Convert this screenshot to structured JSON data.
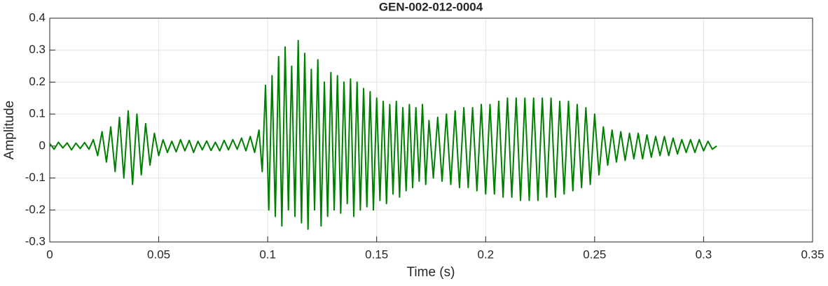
{
  "chart_data": {
    "type": "line",
    "title": "GEN-002-012-0004",
    "x_label": "Time (s)",
    "y_label": "Amplitude",
    "xlim": [
      0,
      0.35
    ],
    "xticks": [
      0,
      0.05,
      0.1,
      0.15,
      0.2,
      0.25,
      0.3,
      0.35
    ],
    "ylim": [
      -0.3,
      0.4
    ],
    "yticks": [
      -0.3,
      -0.2,
      -0.1,
      0,
      0.1,
      0.2,
      0.3,
      0.4
    ],
    "grid": true,
    "series": [
      {
        "color": "#008000",
        "x": [
          0,
          0.002,
          0.004,
          0.006,
          0.008,
          0.01,
          0.012,
          0.014,
          0.016,
          0.018,
          0.02,
          0.022,
          0.024,
          0.026,
          0.028,
          0.03,
          0.032,
          0.034,
          0.036,
          0.038,
          0.04,
          0.042,
          0.044,
          0.046,
          0.048,
          0.05,
          0.052,
          0.054,
          0.056,
          0.058,
          0.06,
          0.062,
          0.064,
          0.066,
          0.068,
          0.07,
          0.072,
          0.074,
          0.076,
          0.078,
          0.08,
          0.082,
          0.084,
          0.086,
          0.088,
          0.09,
          0.092,
          0.094,
          0.096,
          0.0975,
          0.099,
          0.1005,
          0.102,
          0.1035,
          0.105,
          0.1065,
          0.108,
          0.1095,
          0.111,
          0.1125,
          0.114,
          0.1155,
          0.117,
          0.1185,
          0.12,
          0.1215,
          0.123,
          0.1245,
          0.126,
          0.1275,
          0.129,
          0.1305,
          0.132,
          0.1335,
          0.135,
          0.1365,
          0.138,
          0.1395,
          0.141,
          0.1425,
          0.144,
          0.1455,
          0.147,
          0.1485,
          0.15,
          0.1515,
          0.153,
          0.1545,
          0.156,
          0.1575,
          0.159,
          0.1605,
          0.162,
          0.1635,
          0.165,
          0.1665,
          0.168,
          0.1695,
          0.171,
          0.1725,
          0.174,
          0.176,
          0.178,
          0.18,
          0.182,
          0.184,
          0.186,
          0.188,
          0.19,
          0.192,
          0.194,
          0.196,
          0.198,
          0.2,
          0.202,
          0.204,
          0.206,
          0.208,
          0.21,
          0.212,
          0.214,
          0.216,
          0.218,
          0.22,
          0.222,
          0.224,
          0.226,
          0.228,
          0.23,
          0.232,
          0.234,
          0.236,
          0.238,
          0.24,
          0.242,
          0.244,
          0.246,
          0.248,
          0.25,
          0.252,
          0.254,
          0.256,
          0.258,
          0.26,
          0.262,
          0.264,
          0.266,
          0.268,
          0.27,
          0.272,
          0.274,
          0.276,
          0.278,
          0.28,
          0.282,
          0.284,
          0.286,
          0.288,
          0.29,
          0.292,
          0.294,
          0.296,
          0.298,
          0.3,
          0.302,
          0.304,
          0.306
        ],
        "values": [
          0.008,
          -0.01,
          0.012,
          -0.006,
          0.01,
          -0.012,
          0.009,
          -0.008,
          0.011,
          -0.01,
          0.02,
          -0.03,
          0.045,
          -0.05,
          0.06,
          -0.08,
          0.09,
          -0.1,
          0.11,
          -0.12,
          0.1,
          -0.09,
          0.07,
          -0.06,
          0.04,
          -0.03,
          0.02,
          -0.02,
          0.015,
          -0.018,
          0.02,
          -0.015,
          0.018,
          -0.02,
          0.015,
          -0.012,
          0.016,
          -0.014,
          0.012,
          -0.015,
          0.018,
          -0.012,
          0.02,
          -0.01,
          0.025,
          -0.015,
          0.03,
          -0.02,
          0.05,
          -0.08,
          0.19,
          -0.2,
          0.22,
          -0.22,
          0.28,
          -0.25,
          0.31,
          -0.2,
          0.25,
          -0.22,
          0.33,
          -0.24,
          0.29,
          -0.26,
          0.24,
          -0.2,
          0.27,
          -0.25,
          0.2,
          -0.22,
          0.23,
          -0.2,
          0.22,
          -0.21,
          0.2,
          -0.18,
          0.21,
          -0.22,
          0.2,
          -0.2,
          0.18,
          -0.19,
          0.17,
          -0.2,
          0.15,
          -0.17,
          0.14,
          -0.18,
          0.13,
          -0.15,
          0.14,
          -0.16,
          0.12,
          -0.14,
          0.13,
          -0.13,
          0.12,
          -0.11,
          0.13,
          -0.12,
          0.08,
          -0.1,
          0.09,
          -0.11,
          0.1,
          -0.12,
          0.11,
          -0.13,
          0.12,
          -0.13,
          0.12,
          -0.14,
          0.13,
          -0.15,
          0.13,
          -0.15,
          0.14,
          -0.16,
          0.15,
          -0.16,
          0.15,
          -0.17,
          0.15,
          -0.17,
          0.15,
          -0.17,
          0.15,
          -0.16,
          0.15,
          -0.16,
          0.14,
          -0.15,
          0.14,
          -0.14,
          0.13,
          -0.13,
          0.12,
          -0.12,
          0.1,
          -0.09,
          0.06,
          -0.06,
          0.05,
          -0.05,
          0.045,
          -0.045,
          0.04,
          -0.04,
          0.04,
          -0.04,
          0.035,
          -0.035,
          0.03,
          -0.03,
          0.03,
          -0.03,
          0.025,
          -0.025,
          0.02,
          -0.02,
          0.02,
          -0.02,
          0.02,
          -0.015,
          0.015,
          -0.01,
          0
        ]
      }
    ]
  }
}
